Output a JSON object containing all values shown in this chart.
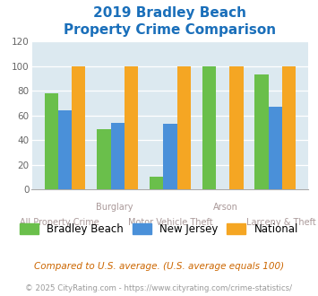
{
  "title_line1": "2019 Bradley Beach",
  "title_line2": "Property Crime Comparison",
  "title_color": "#1a6fba",
  "categories": [
    "All Property Crime",
    "Burglary",
    "Motor Vehicle Theft",
    "Arson",
    "Larceny & Theft"
  ],
  "top_labels": [
    "",
    "Burglary",
    "",
    "Arson",
    ""
  ],
  "bottom_labels": [
    "All Property Crime",
    "",
    "Motor Vehicle Theft",
    "",
    "Larceny & Theft"
  ],
  "bradley_beach": [
    78,
    49,
    10,
    100,
    93
  ],
  "new_jersey": [
    64,
    54,
    53,
    0,
    67
  ],
  "national": [
    100,
    100,
    100,
    100,
    100
  ],
  "bar_colors": {
    "bradley_beach": "#6abf4b",
    "new_jersey": "#4a90d9",
    "national": "#f5a623"
  },
  "ylim": [
    0,
    120
  ],
  "yticks": [
    0,
    20,
    40,
    60,
    80,
    100,
    120
  ],
  "plot_bg_color": "#dce9f0",
  "legend_labels": [
    "Bradley Beach",
    "New Jersey",
    "National"
  ],
  "footnote": "Compared to U.S. average. (U.S. average equals 100)",
  "footnote2": "© 2025 CityRating.com - https://www.cityrating.com/crime-statistics/",
  "footnote_color": "#cc6600",
  "footnote2_color": "#999999",
  "label_color": "#aa9999"
}
